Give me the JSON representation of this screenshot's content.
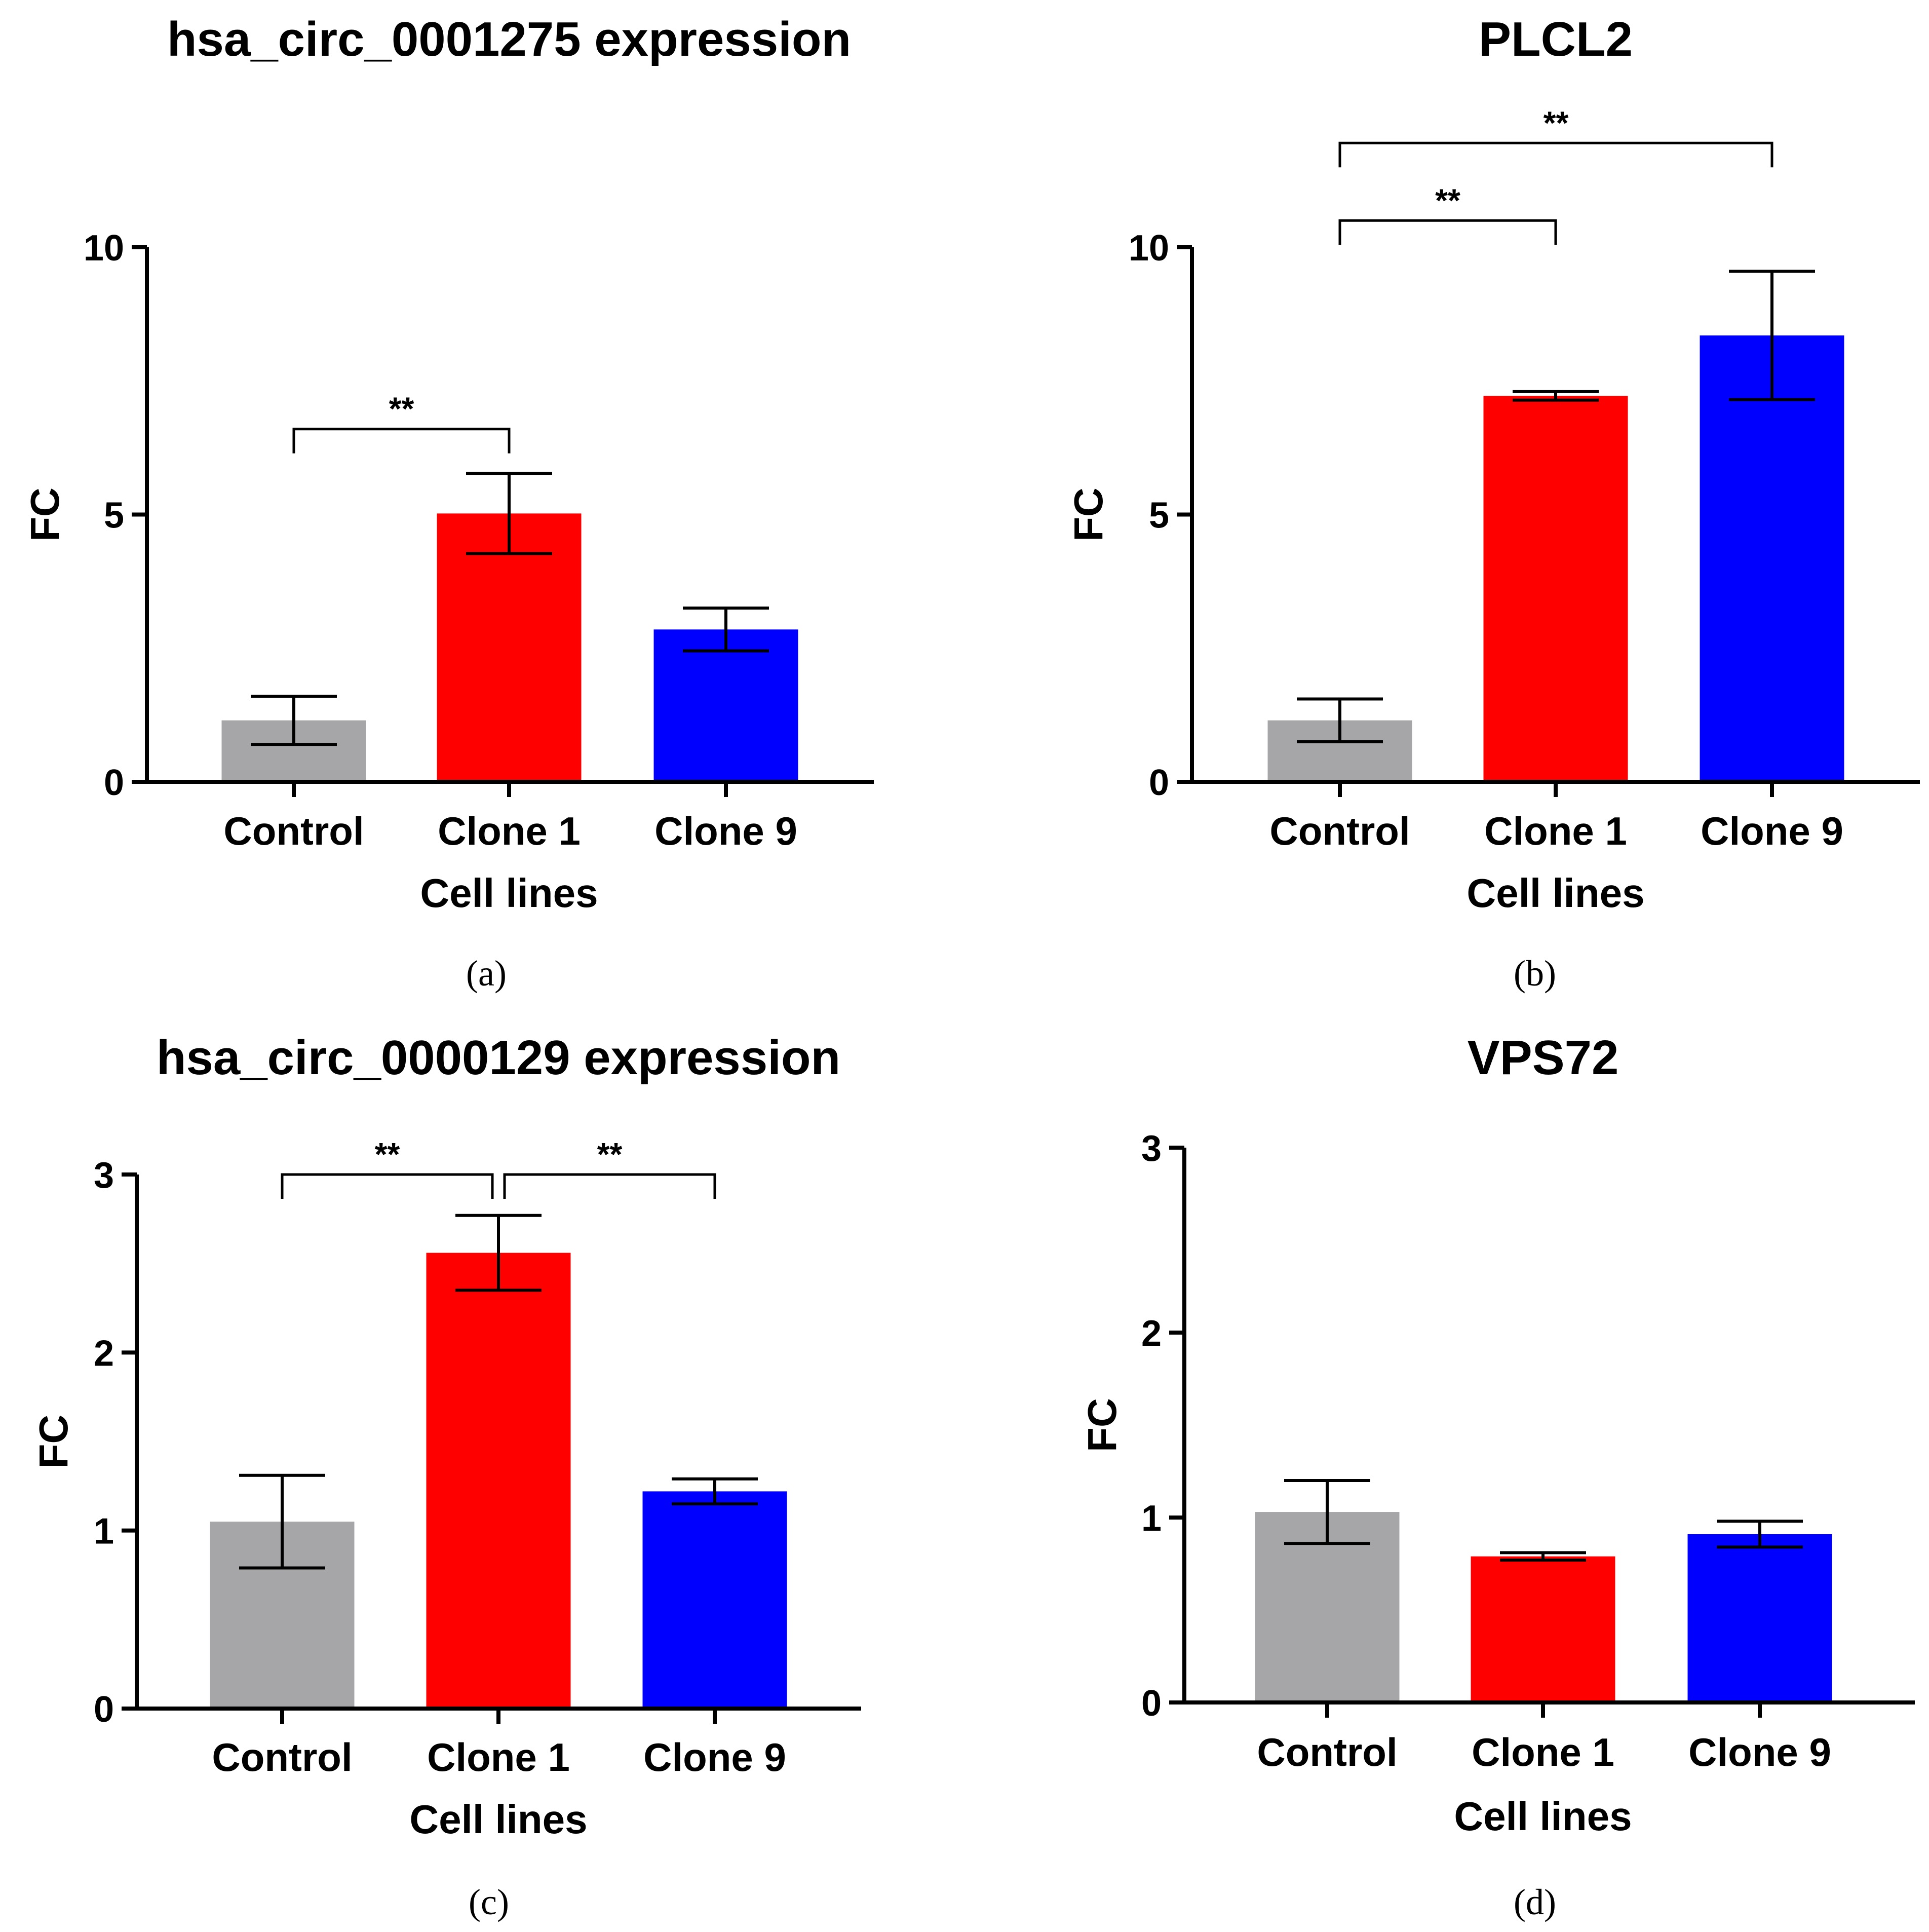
{
  "chart_data": [
    {
      "id": "a",
      "type": "bar",
      "panel_label": "(a)",
      "title": "hsa_circ_0001275 expression",
      "xlabel": "Cell lines",
      "ylabel": "FC",
      "ylim": [
        0,
        10
      ],
      "yticks": [
        0,
        5,
        10
      ],
      "ytick_labels": [
        "0",
        "5",
        "10"
      ],
      "categories": [
        "Control",
        "Clone 1",
        "Clone 9"
      ],
      "values": [
        1.15,
        5.02,
        2.85
      ],
      "errors": [
        0.45,
        0.75,
        0.4
      ],
      "colors": [
        "#a6a6a8",
        "#ff0000",
        "#0000ff"
      ],
      "significance": [
        {
          "from": 0,
          "to": 1,
          "label": "**",
          "level": 6.6
        }
      ]
    },
    {
      "id": "b",
      "type": "bar",
      "panel_label": "(b)",
      "title": "PLCL2",
      "xlabel": "Cell lines",
      "ylabel": "FC",
      "ylim": [
        0,
        10
      ],
      "yticks": [
        0,
        5,
        10
      ],
      "ytick_labels": [
        "0",
        "5",
        "10"
      ],
      "categories": [
        "Control",
        "Clone 1",
        "Clone 9"
      ],
      "values": [
        1.15,
        7.22,
        8.35
      ],
      "errors": [
        0.4,
        0.08,
        1.2
      ],
      "colors": [
        "#a6a6a8",
        "#ff0000",
        "#0000ff"
      ],
      "significance": [
        {
          "from": 0,
          "to": 1,
          "label": "**",
          "level": 10.5
        },
        {
          "from": 0,
          "to": 2,
          "label": "**",
          "level": 11.95
        }
      ]
    },
    {
      "id": "c",
      "type": "bar",
      "panel_label": "(c)",
      "title": "hsa_circ_0000129 expression",
      "xlabel": "Cell lines",
      "ylabel": "FC",
      "ylim": [
        0,
        3
      ],
      "yticks": [
        0,
        1,
        2,
        3
      ],
      "ytick_labels": [
        "0",
        "1",
        "2",
        "3"
      ],
      "categories": [
        "Control",
        "Clone 1",
        "Clone 9"
      ],
      "values": [
        1.05,
        2.56,
        1.22
      ],
      "errors": [
        0.26,
        0.21,
        0.07
      ],
      "colors": [
        "#a6a6a8",
        "#ff0000",
        "#0000ff"
      ],
      "significance": [
        {
          "from": 0,
          "to": 1,
          "label": "**",
          "level": 3.0
        },
        {
          "from": 1,
          "to": 2,
          "label": "**",
          "level": 3.0
        }
      ]
    },
    {
      "id": "d",
      "type": "bar",
      "panel_label": "(d)",
      "title": "VPS72",
      "xlabel": "Cell lines",
      "ylabel": "FC",
      "ylim": [
        0,
        3
      ],
      "yticks": [
        0,
        1,
        2,
        3
      ],
      "ytick_labels": [
        "0",
        "1",
        "2",
        "3"
      ],
      "categories": [
        "Control",
        "Clone 1",
        "Clone 9"
      ],
      "values": [
        1.03,
        0.79,
        0.91
      ],
      "errors": [
        0.17,
        0.02,
        0.07
      ],
      "colors": [
        "#a6a6a8",
        "#ff0000",
        "#0000ff"
      ],
      "significance": []
    }
  ]
}
